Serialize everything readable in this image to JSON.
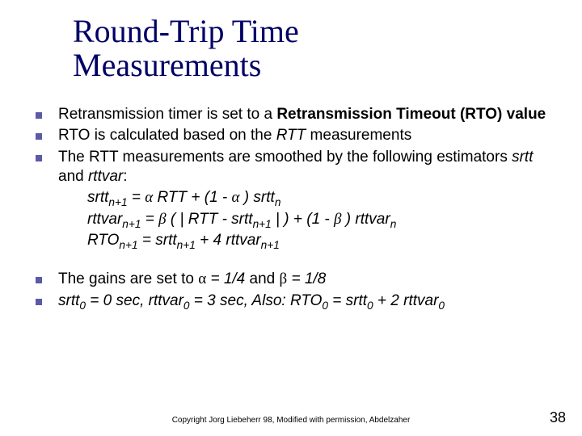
{
  "colors": {
    "title": "#000066",
    "bullet": "#5a5aa6",
    "text": "#000000",
    "background": "#ffffff"
  },
  "typography": {
    "title_font": "Times New Roman",
    "title_size_pt": 40,
    "body_font": "Verdana",
    "body_size_pt": 19,
    "footer_size_pt": 10,
    "pagenum_size_pt": 18
  },
  "title_line1": "Round-Trip Time",
  "title_line2": "Measurements",
  "bullets": {
    "b1_pre": "Retransmission timer is set to a ",
    "b1_bold": "Retransmission Timeout (RTO) value",
    "b2_pre": "RTO is calculated based on the ",
    "b2_it": "RTT",
    "b2_post": " measurements",
    "b3_pre": "The RTT measurements are smoothed by the following estimators ",
    "b3_it1": "srtt",
    "b3_mid": " and ",
    "b3_it2": "rttvar",
    "b3_post": ":",
    "b4_pre": "The gains are set to ",
    "b4_a": "α",
    "b4_aval": " = 1/4",
    "b4_mid": " and ",
    "b4_b": "β",
    "b4_bval": " = 1/8"
  },
  "formulas": {
    "f1_lhs": "srtt",
    "f1_sub1": "n+1",
    "f1_eq": " = ",
    "f1_a": "α",
    "f1_sp": "  ",
    "f1_rtt": "RTT",
    "f1_plus": "  + (1 - ",
    "f1_a2": "α",
    "f1_close": " ) srtt",
    "f1_sub2": "n",
    "f2_lhs": "rttvar",
    "f2_sub1": "n+1",
    "f2_eq": " = ",
    "f2_b": "β",
    "f2_p1": " ( | RTT - srtt",
    "f2_sub2": "n+1",
    "f2_p2": " | ) + (1 - ",
    "f2_b2": "β",
    "f2_p3": " ) rttvar",
    "f2_sub3": "n",
    "f3_lhs": "RTO",
    "f3_sub1": "n+1",
    "f3_eq": " = srtt",
    "f3_sub2": "n+1",
    "f3_mid": " + 4 rttvar",
    "f3_sub3": "n+1"
  },
  "last": {
    "l_srtt": "srtt",
    "l_z1": "0",
    "l_v1": " = 0 sec, rttvar",
    "l_z2": "0",
    "l_v2": " = 3 sec, Also: RTO",
    "l_z3": "0",
    "l_v3": " = srtt",
    "l_z4": "0",
    "l_v4": " + 2 rttvar",
    "l_z5": "0"
  },
  "footer": "Copyright Jorg Liebeherr 98, Modified with permission, Abdelzaher",
  "pagenum": "38"
}
